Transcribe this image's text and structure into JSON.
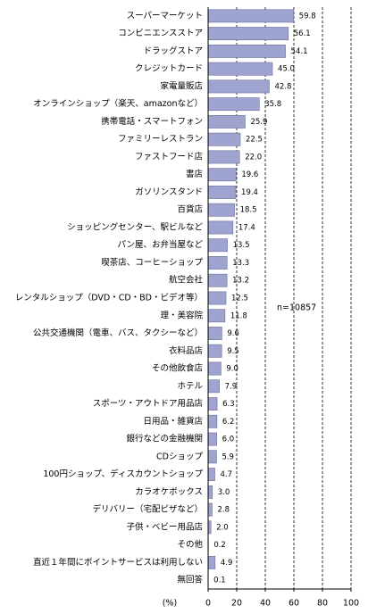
{
  "chart_data": {
    "type": "barh",
    "categories": [
      "スーパーマーケット",
      "コンビニエンスストア",
      "ドラッグストア",
      "クレジットカード",
      "家電量販店",
      "オンラインショップ（楽天、amazonなど）",
      "携帯電話・スマートフォン",
      "ファミリーレストラン",
      "ファストフード店",
      "書店",
      "ガソリンスタンド",
      "百貨店",
      "ショッピングセンター、駅ビルなど",
      "パン屋、お弁当屋など",
      "喫茶店、コーヒーショップ",
      "航空会社",
      "レンタルショップ（DVD・CD・BD・ビデオ等）",
      "理・美容院",
      "公共交通機関（電車、バス、タクシーなど）",
      "衣料品店",
      "その他飲食店",
      "ホテル",
      "スポーツ・アウトドア用品店",
      "日用品・雑貨店",
      "銀行などの金融機関",
      "CDショップ",
      "100円ショップ、ディスカウントショップ",
      "カラオケボックス",
      "デリバリー（宅配ピザなど）",
      "子供・ベビー用品店",
      "その他",
      "直近１年間にポイントサービスは利用しない",
      "無回答"
    ],
    "values": [
      59.8,
      56.1,
      54.1,
      45.0,
      42.8,
      35.8,
      25.9,
      22.5,
      22.0,
      19.6,
      19.4,
      18.5,
      17.4,
      13.5,
      13.3,
      13.2,
      12.5,
      11.8,
      9.6,
      9.5,
      9.0,
      7.9,
      6.3,
      6.2,
      6.0,
      5.9,
      4.7,
      3.0,
      2.8,
      2.0,
      0.2,
      4.9,
      0.1
    ],
    "value_labels": [
      "59.8",
      "56.1",
      "54.1",
      "45.0",
      "42.8",
      "35.8",
      "25.9",
      "22.5",
      "22.0",
      "19.6",
      "19.4",
      "18.5",
      "17.4",
      "13.5",
      "13.3",
      "13.2",
      "12.5",
      "11.8",
      "9.6",
      "9.5",
      "9.0",
      "7.9",
      "6.3",
      "6.2",
      "6.0",
      "5.9",
      "4.7",
      "3.0",
      "2.8",
      "2.0",
      "0.2",
      "4.9",
      "0.1"
    ],
    "color": "#9ea3cf",
    "xlim": [
      0,
      100
    ],
    "xticks": [
      0,
      20,
      40,
      60,
      80,
      100
    ],
    "x_unit": "(%)",
    "annotation": "n=10857",
    "grid": true
  }
}
